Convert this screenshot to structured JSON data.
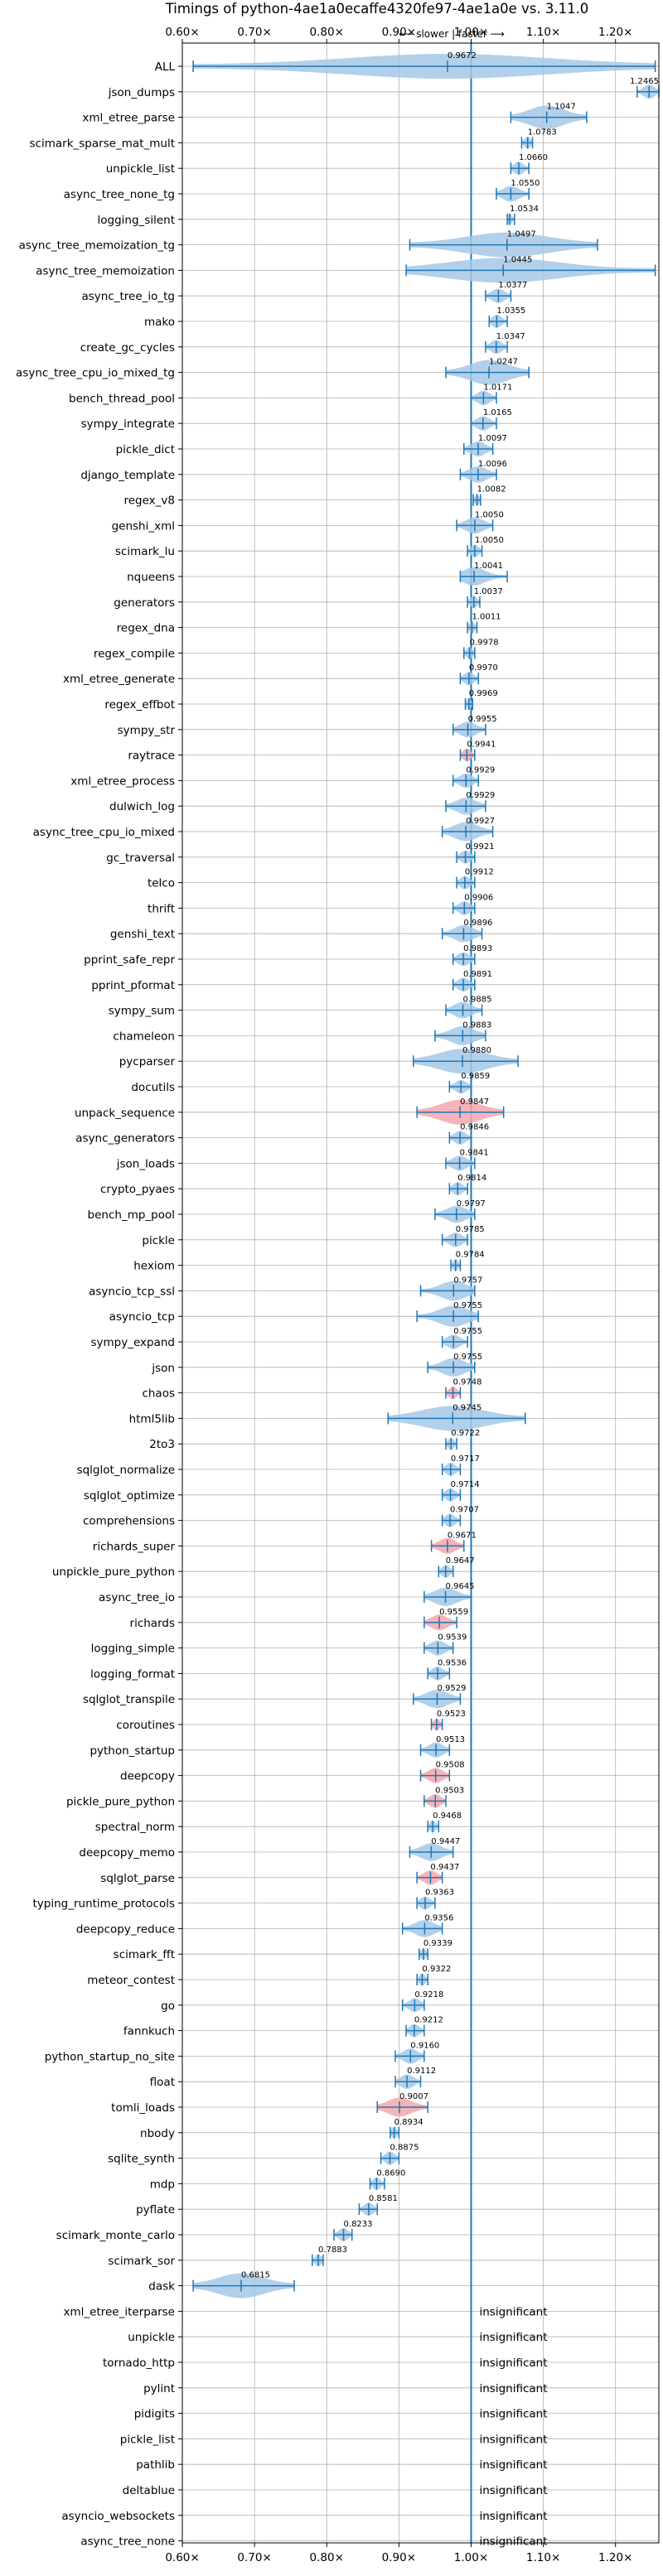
{
  "colors": {
    "accent": "#1f77b4",
    "violin_normal": "#a6c8e6",
    "violin_slower": "#f4a6ad",
    "grid": "#b0b0b0",
    "text": "#000000"
  },
  "chart_data": {
    "type": "violin",
    "title": "Timings of python-4ae1a0ecaffe4320fe97-4ae1a0e vs. 3.11.0",
    "subtitle": "⟵ slower | faster ⟶",
    "xlim": [
      0.6,
      1.26
    ],
    "xticks": [
      0.6,
      0.7,
      0.8,
      0.9,
      1.0,
      1.1,
      1.2
    ],
    "xtick_labels": [
      "0.60×",
      "0.70×",
      "0.80×",
      "0.90×",
      "1.00×",
      "1.10×",
      "1.20×"
    ],
    "reference_line": 1.0,
    "grid": true,
    "benchmarks": [
      {
        "name": "ALL",
        "value": 0.9672,
        "min": 0.615,
        "max": 1.255,
        "label": "0.9672"
      },
      {
        "name": "json_dumps",
        "value": 1.2465,
        "min": 1.23,
        "max": 1.26,
        "label": "1.2465"
      },
      {
        "name": "xml_etree_parse",
        "value": 1.1047,
        "min": 1.055,
        "max": 1.16,
        "label": "1.1047"
      },
      {
        "name": "scimark_sparse_mat_mult",
        "value": 1.0783,
        "min": 1.07,
        "max": 1.085,
        "label": "1.0783"
      },
      {
        "name": "unpickle_list",
        "value": 1.066,
        "min": 1.055,
        "max": 1.08,
        "label": "1.0660"
      },
      {
        "name": "async_tree_none_tg",
        "value": 1.055,
        "min": 1.035,
        "max": 1.08,
        "label": "1.0550"
      },
      {
        "name": "logging_silent",
        "value": 1.0534,
        "min": 1.05,
        "max": 1.06,
        "label": "1.0534"
      },
      {
        "name": "async_tree_memoization_tg",
        "value": 1.0497,
        "min": 0.915,
        "max": 1.175,
        "label": "1.0497"
      },
      {
        "name": "async_tree_memoization",
        "value": 1.0445,
        "min": 0.91,
        "max": 1.255,
        "label": "1.0445"
      },
      {
        "name": "async_tree_io_tg",
        "value": 1.0377,
        "min": 1.02,
        "max": 1.055,
        "label": "1.0377"
      },
      {
        "name": "mako",
        "value": 1.0355,
        "min": 1.025,
        "max": 1.05,
        "label": "1.0355"
      },
      {
        "name": "create_gc_cycles",
        "value": 1.0347,
        "min": 1.02,
        "max": 1.05,
        "label": "1.0347"
      },
      {
        "name": "async_tree_cpu_io_mixed_tg",
        "value": 1.0247,
        "min": 0.965,
        "max": 1.08,
        "label": "1.0247"
      },
      {
        "name": "bench_thread_pool",
        "value": 1.0171,
        "min": 1.0,
        "max": 1.035,
        "label": "1.0171"
      },
      {
        "name": "sympy_integrate",
        "value": 1.0165,
        "min": 1.0,
        "max": 1.035,
        "label": "1.0165"
      },
      {
        "name": "pickle_dict",
        "value": 1.0097,
        "min": 0.99,
        "max": 1.03,
        "label": "1.0097"
      },
      {
        "name": "django_template",
        "value": 1.0096,
        "min": 0.985,
        "max": 1.035,
        "label": "1.0096"
      },
      {
        "name": "regex_v8",
        "value": 1.0082,
        "min": 1.003,
        "max": 1.013,
        "label": "1.0082"
      },
      {
        "name": "genshi_xml",
        "value": 1.005,
        "min": 0.98,
        "max": 1.03,
        "label": "1.0050"
      },
      {
        "name": "scimark_lu",
        "value": 1.005,
        "min": 0.995,
        "max": 1.015,
        "label": "1.0050"
      },
      {
        "name": "nqueens",
        "value": 1.0041,
        "min": 0.985,
        "max": 1.05,
        "label": "1.0041"
      },
      {
        "name": "generators",
        "value": 1.0037,
        "min": 0.995,
        "max": 1.012,
        "label": "1.0037"
      },
      {
        "name": "regex_dna",
        "value": 1.0011,
        "min": 0.995,
        "max": 1.008,
        "label": "1.0011"
      },
      {
        "name": "regex_compile",
        "value": 0.9978,
        "min": 0.99,
        "max": 1.005,
        "label": "0.9978"
      },
      {
        "name": "xml_etree_generate",
        "value": 0.997,
        "min": 0.985,
        "max": 1.01,
        "label": "0.9970"
      },
      {
        "name": "regex_effbot",
        "value": 0.9969,
        "min": 0.992,
        "max": 1.002,
        "label": "0.9969"
      },
      {
        "name": "sympy_str",
        "value": 0.9955,
        "min": 0.975,
        "max": 1.02,
        "label": "0.9955"
      },
      {
        "name": "raytrace",
        "value": 0.9941,
        "min": 0.985,
        "max": 1.005,
        "label": "0.9941",
        "slower": true
      },
      {
        "name": "xml_etree_process",
        "value": 0.9929,
        "min": 0.975,
        "max": 1.01,
        "label": "0.9929"
      },
      {
        "name": "dulwich_log",
        "value": 0.9929,
        "min": 0.965,
        "max": 1.02,
        "label": "0.9929"
      },
      {
        "name": "async_tree_cpu_io_mixed",
        "value": 0.9927,
        "min": 0.96,
        "max": 1.03,
        "label": "0.9927"
      },
      {
        "name": "gc_traversal",
        "value": 0.9921,
        "min": 0.98,
        "max": 1.005,
        "label": "0.9921"
      },
      {
        "name": "telco",
        "value": 0.9912,
        "min": 0.98,
        "max": 1.005,
        "label": "0.9912"
      },
      {
        "name": "thrift",
        "value": 0.9906,
        "min": 0.975,
        "max": 1.005,
        "label": "0.9906"
      },
      {
        "name": "genshi_text",
        "value": 0.9896,
        "min": 0.96,
        "max": 1.015,
        "label": "0.9896"
      },
      {
        "name": "pprint_safe_repr",
        "value": 0.9893,
        "min": 0.975,
        "max": 1.005,
        "label": "0.9893"
      },
      {
        "name": "pprint_pformat",
        "value": 0.9891,
        "min": 0.975,
        "max": 1.005,
        "label": "0.9891"
      },
      {
        "name": "sympy_sum",
        "value": 0.9885,
        "min": 0.965,
        "max": 1.015,
        "label": "0.9885"
      },
      {
        "name": "chameleon",
        "value": 0.9883,
        "min": 0.95,
        "max": 1.02,
        "label": "0.9883"
      },
      {
        "name": "pycparser",
        "value": 0.988,
        "min": 0.92,
        "max": 1.065,
        "label": "0.9880"
      },
      {
        "name": "docutils",
        "value": 0.9859,
        "min": 0.97,
        "max": 1.0,
        "label": "0.9859"
      },
      {
        "name": "unpack_sequence",
        "value": 0.9847,
        "min": 0.925,
        "max": 1.045,
        "label": "0.9847",
        "slower": true
      },
      {
        "name": "async_generators",
        "value": 0.9846,
        "min": 0.97,
        "max": 1.0,
        "label": "0.9846"
      },
      {
        "name": "json_loads",
        "value": 0.9841,
        "min": 0.965,
        "max": 1.005,
        "label": "0.9841"
      },
      {
        "name": "crypto_pyaes",
        "value": 0.9814,
        "min": 0.97,
        "max": 0.995,
        "label": "0.9814"
      },
      {
        "name": "bench_mp_pool",
        "value": 0.9797,
        "min": 0.95,
        "max": 1.005,
        "label": "0.9797"
      },
      {
        "name": "pickle",
        "value": 0.9785,
        "min": 0.96,
        "max": 0.995,
        "label": "0.9785"
      },
      {
        "name": "hexiom",
        "value": 0.9784,
        "min": 0.972,
        "max": 0.985,
        "label": "0.9784"
      },
      {
        "name": "asyncio_tcp_ssl",
        "value": 0.9757,
        "min": 0.93,
        "max": 1.005,
        "label": "0.9757"
      },
      {
        "name": "asyncio_tcp",
        "value": 0.9755,
        "min": 0.925,
        "max": 1.01,
        "label": "0.9755"
      },
      {
        "name": "sympy_expand",
        "value": 0.9755,
        "min": 0.96,
        "max": 0.995,
        "label": "0.9755"
      },
      {
        "name": "json",
        "value": 0.9755,
        "min": 0.94,
        "max": 1.005,
        "label": "0.9755"
      },
      {
        "name": "chaos",
        "value": 0.9748,
        "min": 0.965,
        "max": 0.985,
        "label": "0.9748",
        "slower": true
      },
      {
        "name": "html5lib",
        "value": 0.9745,
        "min": 0.885,
        "max": 1.075,
        "label": "0.9745"
      },
      {
        "name": "2to3",
        "value": 0.9722,
        "min": 0.965,
        "max": 0.98,
        "label": "0.9722"
      },
      {
        "name": "sqlglot_normalize",
        "value": 0.9717,
        "min": 0.96,
        "max": 0.985,
        "label": "0.9717"
      },
      {
        "name": "sqlglot_optimize",
        "value": 0.9714,
        "min": 0.96,
        "max": 0.985,
        "label": "0.9714"
      },
      {
        "name": "comprehensions",
        "value": 0.9707,
        "min": 0.96,
        "max": 0.985,
        "label": "0.9707"
      },
      {
        "name": "richards_super",
        "value": 0.9671,
        "min": 0.945,
        "max": 0.99,
        "label": "0.9671",
        "slower": true
      },
      {
        "name": "unpickle_pure_python",
        "value": 0.9647,
        "min": 0.955,
        "max": 0.975,
        "label": "0.9647"
      },
      {
        "name": "async_tree_io",
        "value": 0.9645,
        "min": 0.935,
        "max": 1.0,
        "label": "0.9645"
      },
      {
        "name": "richards",
        "value": 0.9559,
        "min": 0.935,
        "max": 0.98,
        "label": "0.9559",
        "slower": true
      },
      {
        "name": "logging_simple",
        "value": 0.9539,
        "min": 0.935,
        "max": 0.975,
        "label": "0.9539"
      },
      {
        "name": "logging_format",
        "value": 0.9536,
        "min": 0.94,
        "max": 0.97,
        "label": "0.9536"
      },
      {
        "name": "sqlglot_transpile",
        "value": 0.9529,
        "min": 0.92,
        "max": 0.985,
        "label": "0.9529"
      },
      {
        "name": "coroutines",
        "value": 0.9523,
        "min": 0.945,
        "max": 0.96,
        "label": "0.9523",
        "slower": true
      },
      {
        "name": "python_startup",
        "value": 0.9513,
        "min": 0.93,
        "max": 0.97,
        "label": "0.9513"
      },
      {
        "name": "deepcopy",
        "value": 0.9508,
        "min": 0.93,
        "max": 0.97,
        "label": "0.9508",
        "slower": true
      },
      {
        "name": "pickle_pure_python",
        "value": 0.9503,
        "min": 0.935,
        "max": 0.965,
        "label": "0.9503",
        "slower": true
      },
      {
        "name": "spectral_norm",
        "value": 0.9468,
        "min": 0.94,
        "max": 0.955,
        "label": "0.9468"
      },
      {
        "name": "deepcopy_memo",
        "value": 0.9447,
        "min": 0.915,
        "max": 0.975,
        "label": "0.9447"
      },
      {
        "name": "sqlglot_parse",
        "value": 0.9437,
        "min": 0.925,
        "max": 0.96,
        "label": "0.9437",
        "slower": true
      },
      {
        "name": "typing_runtime_protocols",
        "value": 0.9363,
        "min": 0.925,
        "max": 0.95,
        "label": "0.9363"
      },
      {
        "name": "deepcopy_reduce",
        "value": 0.9356,
        "min": 0.905,
        "max": 0.96,
        "label": "0.9356"
      },
      {
        "name": "scimark_fft",
        "value": 0.9339,
        "min": 0.928,
        "max": 0.94,
        "label": "0.9339"
      },
      {
        "name": "meteor_contest",
        "value": 0.9322,
        "min": 0.925,
        "max": 0.94,
        "label": "0.9322"
      },
      {
        "name": "go",
        "value": 0.9218,
        "min": 0.905,
        "max": 0.935,
        "label": "0.9218"
      },
      {
        "name": "fannkuch",
        "value": 0.9212,
        "min": 0.91,
        "max": 0.935,
        "label": "0.9212"
      },
      {
        "name": "python_startup_no_site",
        "value": 0.916,
        "min": 0.895,
        "max": 0.935,
        "label": "0.9160"
      },
      {
        "name": "float",
        "value": 0.9112,
        "min": 0.895,
        "max": 0.93,
        "label": "0.9112"
      },
      {
        "name": "tomli_loads",
        "value": 0.9007,
        "min": 0.87,
        "max": 0.94,
        "label": "0.9007",
        "slower": true
      },
      {
        "name": "nbody",
        "value": 0.8934,
        "min": 0.888,
        "max": 0.9,
        "label": "0.8934"
      },
      {
        "name": "sqlite_synth",
        "value": 0.8875,
        "min": 0.875,
        "max": 0.9,
        "label": "0.8875"
      },
      {
        "name": "mdp",
        "value": 0.869,
        "min": 0.86,
        "max": 0.88,
        "label": "0.8690"
      },
      {
        "name": "pyflate",
        "value": 0.8581,
        "min": 0.845,
        "max": 0.87,
        "label": "0.8581"
      },
      {
        "name": "scimark_monte_carlo",
        "value": 0.8233,
        "min": 0.81,
        "max": 0.835,
        "label": "0.8233"
      },
      {
        "name": "scimark_sor",
        "value": 0.7883,
        "min": 0.78,
        "max": 0.795,
        "label": "0.7883"
      },
      {
        "name": "dask",
        "value": 0.6815,
        "min": 0.615,
        "max": 0.755,
        "label": "0.6815"
      },
      {
        "name": "xml_etree_iterparse",
        "label": "insignificant",
        "insignificant": true
      },
      {
        "name": "unpickle",
        "label": "insignificant",
        "insignificant": true
      },
      {
        "name": "tornado_http",
        "label": "insignificant",
        "insignificant": true
      },
      {
        "name": "pylint",
        "label": "insignificant",
        "insignificant": true
      },
      {
        "name": "pidigits",
        "label": "insignificant",
        "insignificant": true
      },
      {
        "name": "pickle_list",
        "label": "insignificant",
        "insignificant": true
      },
      {
        "name": "pathlib",
        "label": "insignificant",
        "insignificant": true
      },
      {
        "name": "deltablue",
        "label": "insignificant",
        "insignificant": true
      },
      {
        "name": "asyncio_websockets",
        "label": "insignificant",
        "insignificant": true
      },
      {
        "name": "async_tree_none",
        "label": "insignificant",
        "insignificant": true
      }
    ]
  }
}
